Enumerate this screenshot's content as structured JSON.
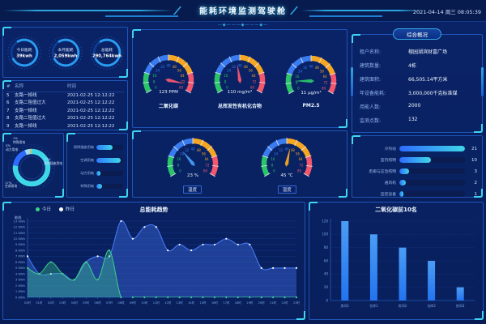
{
  "header": {
    "title": "能耗环境监测驾驶舱",
    "datetime": "2021-04-14 周三 08:05:39",
    "deco": "—◆———◆———◆—"
  },
  "colors": {
    "bg": "#081c54",
    "accent_cyan": "#3fd6f0",
    "panel_border": "#1e55b8",
    "kpi_ring": "#2b9bf0"
  },
  "kpis": [
    {
      "label": "今日能耗",
      "value": "39kwh"
    },
    {
      "label": "本月能耗",
      "value": "2,059kwh"
    },
    {
      "label": "总能耗",
      "value": "290,764kwh"
    }
  ],
  "alarms": {
    "columns": [
      "#",
      "名称",
      "时间"
    ],
    "rows": [
      [
        "5",
        "支路一掉线",
        "2021-02-25 12:12:22"
      ],
      [
        "6",
        "支路二阻值过大",
        "2021-02-25 12:12:22"
      ],
      [
        "7",
        "支路一掉线",
        "2021-02-25 12:12:22"
      ],
      [
        "8",
        "支路二阻值过大",
        "2021-02-25 12:12:22"
      ],
      [
        "9",
        "支路一掉线",
        "2021-02-25 12:12:22"
      ]
    ]
  },
  "energy_bars": {
    "items": [
      {
        "label": "照明插座用电",
        "pct": 62
      },
      {
        "label": "空调用电",
        "pct": 92
      },
      {
        "label": "动力用电",
        "pct": 16
      },
      {
        "label": "特殊用电",
        "pct": 22
      }
    ]
  },
  "gauge_scale": {
    "min": 0,
    "max": 80,
    "ticks": [
      0,
      8,
      16,
      24,
      32,
      40,
      48,
      56,
      64,
      72,
      80
    ]
  },
  "gauge_zones": [
    {
      "to": 16,
      "color": "#2bc46a"
    },
    {
      "to": 40,
      "color": "#3a7bf0"
    },
    {
      "to": 64,
      "color": "#f5a623"
    },
    {
      "to": 80,
      "color": "#f4566e"
    }
  ],
  "air_gauges": [
    {
      "label": "二氧化碳",
      "value": "123 PPM",
      "needle_value": 74,
      "needle_color": "#f4566e"
    },
    {
      "label": "总挥发性有机化合物",
      "value": "110 mg/m³",
      "needle_value": 37,
      "needle_color": "#f4566e"
    },
    {
      "label": "PM2.5",
      "value": "11 μg/m³",
      "needle_value": 10,
      "needle_color": "#2bc46a"
    }
  ],
  "env_gauges": [
    {
      "label": "温度",
      "value": "23 %",
      "needle_value": 27,
      "needle_color": "#4a9df5"
    },
    {
      "label": "湿度",
      "value": "45 ℃",
      "needle_value": 44,
      "needle_color": "#f5a623"
    }
  ],
  "overview": {
    "title": "综合概况",
    "rows": [
      {
        "label": "租户名称:",
        "value": "榕园湖滨财富广场"
      },
      {
        "label": "建筑数量:",
        "value": "4栋"
      },
      {
        "label": "建筑面积:",
        "value": "66,505.14平方米"
      },
      {
        "label": "年设备能耗:",
        "value": "3,000,000千克标准煤"
      },
      {
        "label": "用能人数:",
        "value": "2000"
      },
      {
        "label": "监测点数:",
        "value": "132"
      }
    ]
  },
  "device_bars": {
    "max": 21,
    "items": [
      {
        "label": "冷热站",
        "value": 21
      },
      {
        "label": "室内照明",
        "value": 10
      },
      {
        "label": "走廊与应急照明",
        "value": 3
      },
      {
        "label": "通风机",
        "value": 2
      },
      {
        "label": "监控设备",
        "value": 1
      }
    ]
  },
  "chart_data": [
    {
      "id": "energy-structure",
      "type": "pie",
      "title": "",
      "slices": [
        {
          "label": "照明插座用电",
          "value": 77,
          "color": "#3fd6e8"
        },
        {
          "label": "空调用电",
          "value": 17,
          "color": "#2e6bff"
        },
        {
          "label": "动力用电",
          "value": 5,
          "color": "#9adbf5"
        },
        {
          "label": "特殊用电",
          "value": 1,
          "color": "#f0c63c"
        }
      ]
    },
    {
      "id": "trend",
      "type": "area",
      "title": "总能耗趋势",
      "ylabel": "能耗",
      "y_unit": "KWh",
      "ylim": [
        0,
        13
      ],
      "y_ticks": [
        0,
        1,
        2,
        3,
        4,
        5,
        6,
        7,
        8,
        9,
        10,
        11,
        12,
        13
      ],
      "grid": true,
      "legend_position": "top-left",
      "x": [
        "00时",
        "01时",
        "02时",
        "03时",
        "04时",
        "05时",
        "06时",
        "07时",
        "08时",
        "09时",
        "10时",
        "11时",
        "12时",
        "13时",
        "14时",
        "15时",
        "16时",
        "17时",
        "18时",
        "19时",
        "20时",
        "21时",
        "22时",
        "23时"
      ],
      "series": [
        {
          "name": "今日",
          "color": "#3bd08a",
          "dot": "#3bd08a",
          "values": [
            5,
            4,
            6,
            4,
            3,
            6,
            3,
            8,
            0,
            0,
            0,
            0,
            0,
            0,
            0,
            0,
            0,
            0,
            0,
            0,
            0,
            0,
            0,
            0
          ]
        },
        {
          "name": "昨日",
          "color": "#4a7dff",
          "dot": "#ffffff",
          "values": [
            7,
            4,
            4,
            4,
            3,
            6,
            7,
            7,
            13,
            10,
            12,
            12,
            8,
            9,
            8,
            9,
            9,
            10,
            9,
            9,
            5,
            5,
            5,
            5
          ]
        }
      ]
    },
    {
      "id": "co2-top10",
      "type": "bar",
      "title": "二氧化碳前10名",
      "categories": [
        "房间1",
        "仓库1",
        "房间2",
        "仓库2",
        "房间3"
      ],
      "values": [
        120,
        100,
        80,
        60,
        20
      ],
      "ylim": [
        0,
        120
      ],
      "y_ticks": [
        0,
        20,
        40,
        60,
        80,
        100,
        120
      ],
      "bar_color": "#2374f0"
    }
  ]
}
